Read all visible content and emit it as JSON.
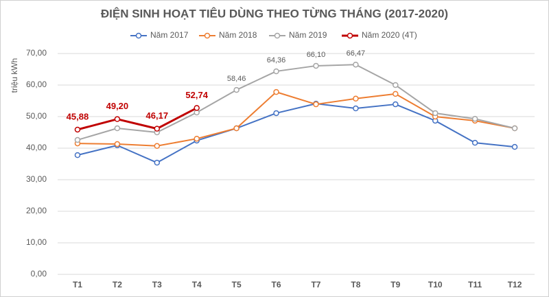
{
  "chart_data": {
    "type": "line",
    "title": "ĐIỆN SINH HOẠT TIÊU DÙNG THEO TỪNG THÁNG (2017-2020)",
    "y_label": "triệu kWh",
    "categories": [
      "T1",
      "T2",
      "T3",
      "T4",
      "T5",
      "T6",
      "T7",
      "T8",
      "T9",
      "T10",
      "T11",
      "T12"
    ],
    "series": [
      {
        "name": "Năm 2017",
        "color": "#4472c4",
        "values": [
          37.8,
          40.9,
          35.4,
          42.4,
          46.3,
          51.1,
          54.1,
          52.6,
          53.9,
          48.7,
          41.7,
          40.4
        ]
      },
      {
        "name": "Năm 2018",
        "color": "#ed7d31",
        "values": [
          41.5,
          41.3,
          40.7,
          43.0,
          46.3,
          57.8,
          53.9,
          55.7,
          57.2,
          50.0,
          48.7,
          46.3
        ]
      },
      {
        "name": "Năm 2019",
        "color": "#a5a5a5",
        "values": [
          42.6,
          46.3,
          45.0,
          51.3,
          58.46,
          64.36,
          66.1,
          66.47,
          60.0,
          51.1,
          49.3,
          46.3
        ],
        "value_labels": [
          null,
          null,
          null,
          null,
          "58,46",
          "64,36",
          "66,10",
          "66,47",
          null,
          null,
          null,
          null
        ]
      },
      {
        "name": "Năm 2020 (4T)",
        "color": "#c00000",
        "values": [
          45.88,
          49.2,
          46.17,
          52.74,
          null,
          null,
          null,
          null,
          null,
          null,
          null,
          null
        ],
        "value_labels": [
          "45,88",
          "49,20",
          "46,17",
          "52,74",
          null,
          null,
          null,
          null,
          null,
          null,
          null,
          null
        ]
      }
    ],
    "ylim": [
      0,
      70
    ],
    "yticks": [
      {
        "value": 0,
        "label": "0,00"
      },
      {
        "value": 10,
        "label": "10,00"
      },
      {
        "value": 20,
        "label": "20,00"
      },
      {
        "value": 30,
        "label": "30,00"
      },
      {
        "value": 40,
        "label": "40,00"
      },
      {
        "value": 50,
        "label": "50,00"
      },
      {
        "value": 60,
        "label": "60,00"
      },
      {
        "value": 70,
        "label": "70,00"
      }
    ],
    "grid": true,
    "legend": "top"
  }
}
